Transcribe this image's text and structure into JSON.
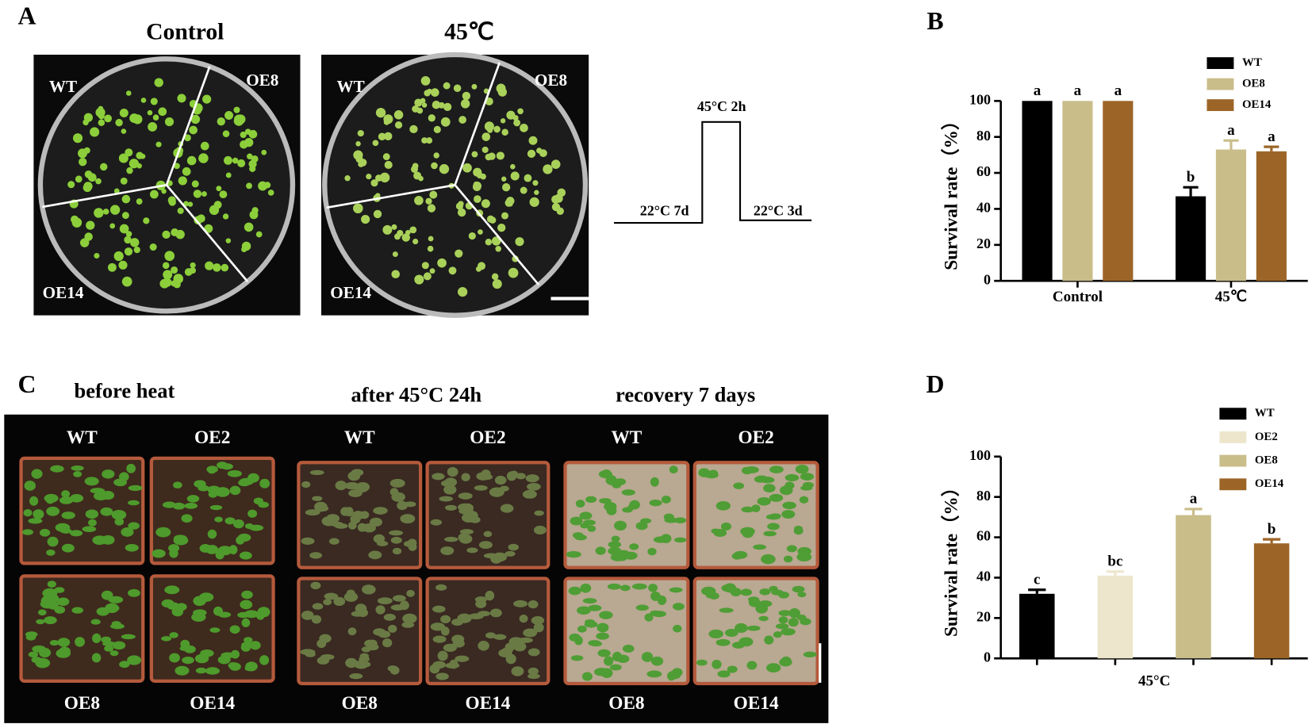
{
  "panel_a": {
    "label": "A",
    "titles": [
      "Control",
      "45℃"
    ],
    "plate_labels": [
      [
        "WT",
        "OE8",
        "OE14"
      ],
      [
        "WT",
        "OE8",
        "OE14"
      ]
    ],
    "treatment": {
      "heat": "45°C 2h",
      "before": "22°C 7d",
      "after": "22°C 3d"
    }
  },
  "panel_c": {
    "label": "C",
    "conditions": [
      "before heat",
      "after  45°C  24h",
      "recovery 7 days"
    ],
    "pot_labels": [
      [
        "WT",
        "OE2",
        "OE8",
        "OE14"
      ],
      [
        "WT",
        "OE2",
        "OE8",
        "OE14"
      ],
      [
        "WT",
        "OE2",
        "OE8",
        "OE14"
      ]
    ]
  },
  "chart_data": [
    {
      "panel": "B",
      "type": "bar",
      "y_label": "Survival rate（%）",
      "categories": [
        "Control",
        "45℃"
      ],
      "series": [
        {
          "name": "WT",
          "color": "#000000",
          "values": [
            100,
            47
          ],
          "errors": [
            null,
            5
          ],
          "letters": [
            "a",
            "b"
          ]
        },
        {
          "name": "OE8",
          "color": "#c9bd8a",
          "values": [
            100,
            73
          ],
          "errors": [
            null,
            5
          ],
          "letters": [
            "a",
            "a"
          ]
        },
        {
          "name": "OE14",
          "color": "#9c6527",
          "values": [
            100,
            72
          ],
          "errors": [
            null,
            2.5
          ],
          "letters": [
            "a",
            "a"
          ]
        }
      ],
      "ylim": [
        0,
        100
      ],
      "yticks": [
        0,
        20,
        40,
        60,
        80,
        100
      ],
      "legend": "upper right"
    },
    {
      "panel": "D",
      "type": "bar",
      "y_label": "Survival rate（%）",
      "categories": [
        "45°C"
      ],
      "series": [
        {
          "name": "WT",
          "color": "#000000",
          "values": [
            32
          ],
          "errors": [
            2
          ],
          "letters": [
            "c"
          ]
        },
        {
          "name": "OE2",
          "color": "#ede6cc",
          "values": [
            41
          ],
          "errors": [
            2
          ],
          "letters": [
            "bc"
          ]
        },
        {
          "name": "OE8",
          "color": "#c9bd8a",
          "values": [
            71
          ],
          "errors": [
            3
          ],
          "letters": [
            "a"
          ]
        },
        {
          "name": "OE14",
          "color": "#9c6527",
          "values": [
            57
          ],
          "errors": [
            2
          ],
          "letters": [
            "b"
          ]
        }
      ],
      "ylim": [
        0,
        100
      ],
      "yticks": [
        0,
        20,
        40,
        60,
        80,
        100
      ],
      "legend": "upper right"
    }
  ]
}
